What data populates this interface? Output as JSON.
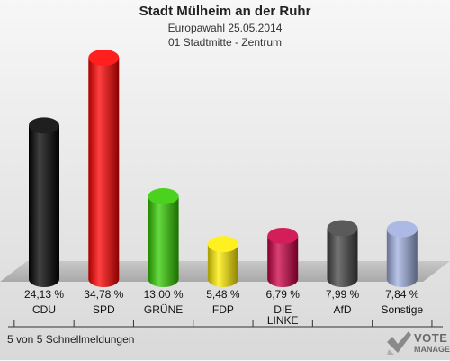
{
  "header": {
    "title": "Stadt Mülheim an der Ruhr",
    "subtitle": "Europawahl 25.05.2014",
    "district": "01 Stadtmitte - Zentrum"
  },
  "footer": {
    "status": "5 von 5 Schnellmeldungen"
  },
  "logo": {
    "line1": "VOTE",
    "line2": "MANAGER"
  },
  "chart_data": {
    "type": "bar",
    "title": "Stadt Mülheim an der Ruhr",
    "subtitle": "Europawahl 25.05.2014",
    "categories": [
      "CDU",
      "SPD",
      "GRÜNE",
      "FDP",
      "DIE LINKE",
      "AfD",
      "Sonstige"
    ],
    "category_lines": [
      [
        "CDU"
      ],
      [
        "SPD"
      ],
      [
        "GRÜNE"
      ],
      [
        "FDP"
      ],
      [
        "DIE",
        "LINKE"
      ],
      [
        "AfD"
      ],
      [
        "Sonstige"
      ]
    ],
    "values": [
      24.13,
      34.78,
      13.0,
      5.48,
      6.79,
      7.99,
      7.84
    ],
    "value_labels": [
      "24,13 %",
      "34,78 %",
      "13,00 %",
      "5,48 %",
      "6,79 %",
      "7,99 %",
      "7,84 %"
    ],
    "colors": [
      "#000000",
      "#ff0000",
      "#33cc00",
      "#ffee00",
      "#cc0044",
      "#444444",
      "#a0b0e0"
    ],
    "ylim": [
      0,
      34.78
    ],
    "xlabel": "",
    "ylabel": "",
    "grid": false,
    "legend": "none"
  }
}
